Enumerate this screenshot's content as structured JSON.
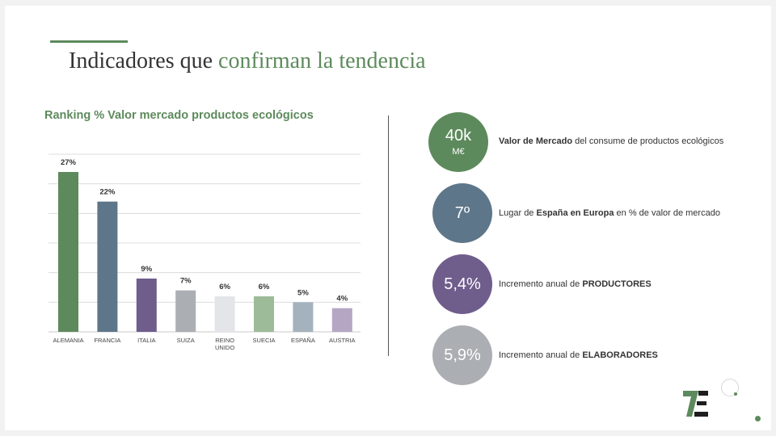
{
  "slide": {
    "title_part1": "Indicadores que ",
    "title_part2": "confirman la tendencia"
  },
  "colors": {
    "accent": "#5d8a5c"
  },
  "chart_data": {
    "type": "bar",
    "title": "Ranking % Valor mercado productos ecológicos",
    "categories": [
      "ALEMANIA",
      "FRANCIA",
      "ITALIA",
      "SUIZA",
      "REINO UNIDO",
      "SUECIA",
      "ESPAÑA",
      "AUSTRIA"
    ],
    "values": [
      27,
      22,
      9,
      7,
      6,
      6,
      5,
      4
    ],
    "data_labels": [
      "27%",
      "22%",
      "9%",
      "7%",
      "6%",
      "6%",
      "5%",
      "4%"
    ],
    "colors": [
      "#5d8a5c",
      "#5e7689",
      "#6f5d8c",
      "#abaeb2",
      "#e3e5e8",
      "#9dbb98",
      "#a3b2bd",
      "#b5a6c4"
    ],
    "ylim": [
      0,
      30
    ],
    "grid": true,
    "xlabel": "",
    "ylabel": ""
  },
  "indicators": [
    {
      "value": "40k",
      "unit": "M€",
      "color": "#5d8a5c",
      "bold": "Valor de Mercado",
      "text_before": "",
      "text_after": " del consume de productos ecológicos"
    },
    {
      "value": "7º",
      "unit": "",
      "color": "#5e7689",
      "bold": "España en Europa",
      "text_before": "Lugar de ",
      "text_after": " en % de valor de mercado"
    },
    {
      "value": "5,4%",
      "unit": "",
      "color": "#6f5d8c",
      "bold": "PRODUCTORES",
      "text_before": "Incremento anual de ",
      "text_after": ""
    },
    {
      "value": "5,9%",
      "unit": "",
      "color": "#abaeb2",
      "bold": "ELABORADORES",
      "text_before": "Incremento anual de ",
      "text_after": ""
    }
  ],
  "logo": {
    "name": "logo-7e",
    "color_primary": "#5d8a5c",
    "color_secondary": "#1e1e1e"
  }
}
